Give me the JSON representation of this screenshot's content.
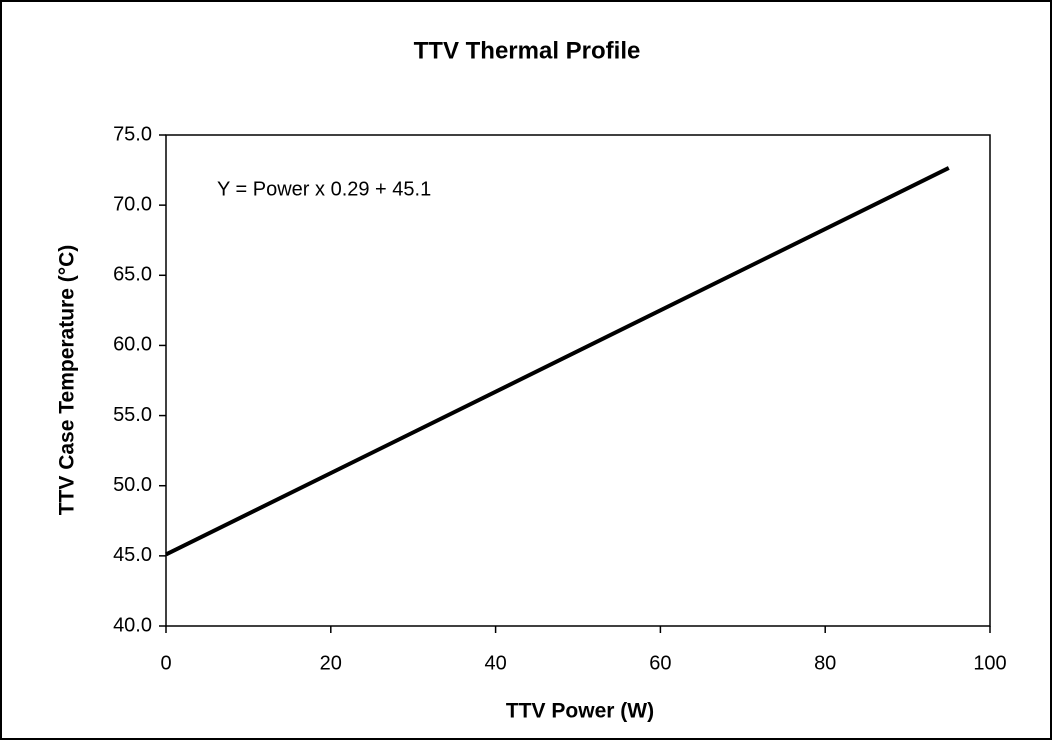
{
  "chart_data": {
    "type": "line",
    "title": "TTV Thermal Profile",
    "x_label": "TTV Power (W)",
    "y_label": "TTV Case Temperature (°C)",
    "annotation": "Y = Power x 0.29 + 45.1",
    "x": [
      0,
      95
    ],
    "series": [
      {
        "name": "TTV Thermal Profile",
        "color": "#000000",
        "values": [
          45.1,
          72.65
        ]
      }
    ],
    "xlim": [
      0,
      100
    ],
    "xticks": [
      0,
      20,
      40,
      60,
      80,
      100
    ],
    "ylim": [
      40,
      75
    ],
    "yticks": [
      {
        "value": 40,
        "label": "40.0"
      },
      {
        "value": 45,
        "label": "45.0"
      },
      {
        "value": 50,
        "label": "50.0"
      },
      {
        "value": 55,
        "label": "55.0"
      },
      {
        "value": 60,
        "label": "60.0"
      },
      {
        "value": 65,
        "label": "65.0"
      },
      {
        "value": 70,
        "label": "70.0"
      },
      {
        "value": 75,
        "label": "75.0"
      }
    ],
    "grid": false
  }
}
